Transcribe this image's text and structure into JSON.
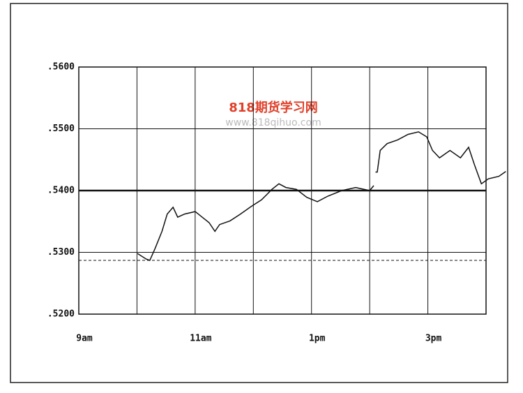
{
  "chart_data": {
    "type": "line",
    "watermark": "818期货学习网",
    "watermark_url": "www.818qihuo.com",
    "x": [
      10.01,
      10.16,
      10.22,
      10.31,
      10.43,
      10.52,
      10.62,
      10.7,
      10.82,
      11.0,
      11.12,
      11.24,
      11.34,
      11.42,
      11.6,
      11.78,
      11.96,
      12.14,
      12.32,
      12.44,
      12.56,
      12.74,
      12.92,
      13.1,
      13.28,
      13.52,
      13.76,
      14.0,
      14.07,
      14.08,
      14.1,
      14.13,
      14.18,
      14.3,
      14.48,
      14.66,
      14.84,
      14.98,
      15.08,
      15.2,
      15.38,
      15.56,
      15.7,
      15.8,
      15.92,
      16.04,
      16.22,
      16.34
    ],
    "values": [
      0.5298,
      0.5289,
      0.5287,
      0.5306,
      0.5334,
      0.5362,
      0.5373,
      0.5357,
      0.5362,
      0.5366,
      0.5357,
      0.5348,
      0.5334,
      0.5345,
      0.5351,
      0.5362,
      0.5374,
      0.5385,
      0.5402,
      0.5411,
      0.5405,
      0.5402,
      0.5389,
      0.5382,
      0.5391,
      0.54,
      0.5405,
      0.54,
      0.5408,
      null,
      0.543,
      0.543,
      0.5465,
      0.5476,
      0.5482,
      0.5491,
      0.5495,
      0.5487,
      0.5465,
      0.5453,
      0.5465,
      0.5453,
      0.547,
      0.5442,
      0.5411,
      0.5419,
      0.5423,
      0.5431
    ],
    "color": "#111111",
    "xlim": [
      9,
      16
    ],
    "xticks": [
      {
        "value": 9,
        "label": "9am"
      },
      {
        "value": 11,
        "label": "11am"
      },
      {
        "value": 13,
        "label": "1pm"
      },
      {
        "value": 15,
        "label": "3pm"
      }
    ],
    "xgrid": [
      10,
      11,
      12,
      13,
      14,
      15
    ],
    "ylim": [
      0.52,
      0.56
    ],
    "yticks": [
      {
        "value": 0.52,
        "label": ".5200"
      },
      {
        "value": 0.53,
        "label": ".5300"
      },
      {
        "value": 0.54,
        "label": ".5400"
      },
      {
        "value": 0.55,
        "label": ".5500"
      },
      {
        "value": 0.56,
        "label": ".5600"
      }
    ],
    "bold_level": 0.54,
    "dashed_level": 0.5287,
    "grid": true
  }
}
